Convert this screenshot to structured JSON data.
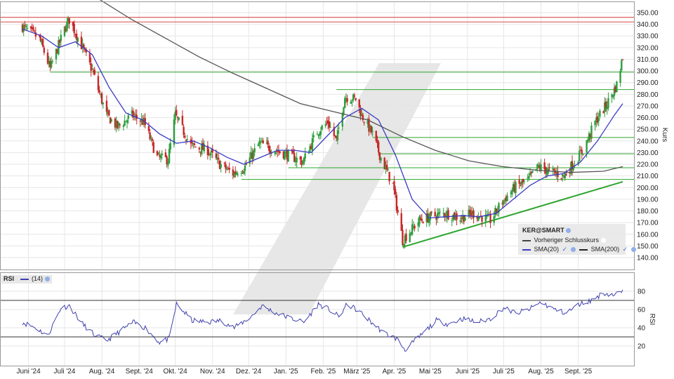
{
  "chart_data": [
    {
      "type": "candlestick",
      "symbol": "KER@SMART",
      "ylabel": "Kurs",
      "ylim": [
        140,
        350
      ],
      "y_ticks": [
        "350.00",
        "340.00",
        "330.00",
        "320.00",
        "310.00",
        "300.00",
        "290.00",
        "280.00",
        "270.00",
        "260.00",
        "250.00",
        "240.00",
        "230.00",
        "220.00",
        "210.00",
        "200.00",
        "190.00",
        "180.00",
        "170.00",
        "160.00",
        "150.00",
        "140.00"
      ],
      "x_ticks": [
        "Juni '24",
        "Juli '24",
        "Aug. '24",
        "Sept. '24",
        "Okt. '24",
        "Nov. '24",
        "Dez. '24",
        "Jan. '25",
        "Feb. '25",
        "März '25",
        "Apr. '25",
        "Mai '25",
        "Juni '25",
        "Juli '25",
        "Aug. '25",
        "Sept. '25"
      ],
      "price_path": [
        {
          "x": "2024-05-27",
          "y": 338
        },
        {
          "x": "2024-06-10",
          "y": 328
        },
        {
          "x": "2024-06-19",
          "y": 302
        },
        {
          "x": "2024-07-01",
          "y": 336
        },
        {
          "x": "2024-07-05",
          "y": 344
        },
        {
          "x": "2024-07-15",
          "y": 322
        },
        {
          "x": "2024-07-25",
          "y": 298
        },
        {
          "x": "2024-07-29",
          "y": 284
        },
        {
          "x": "2024-08-05",
          "y": 262
        },
        {
          "x": "2024-08-14",
          "y": 252
        },
        {
          "x": "2024-08-26",
          "y": 262
        },
        {
          "x": "2024-09-05",
          "y": 256
        },
        {
          "x": "2024-09-16",
          "y": 226
        },
        {
          "x": "2024-09-25",
          "y": 224
        },
        {
          "x": "2024-10-01",
          "y": 262
        },
        {
          "x": "2024-10-14",
          "y": 236
        },
        {
          "x": "2024-10-28",
          "y": 232
        },
        {
          "x": "2024-11-07",
          "y": 220
        },
        {
          "x": "2024-11-18",
          "y": 212
        },
        {
          "x": "2024-11-28",
          "y": 218
        },
        {
          "x": "2024-12-10",
          "y": 238
        },
        {
          "x": "2024-12-23",
          "y": 232
        },
        {
          "x": "2025-01-03",
          "y": 228
        },
        {
          "x": "2025-01-15",
          "y": 222
        },
        {
          "x": "2025-01-27",
          "y": 248
        },
        {
          "x": "2025-02-05",
          "y": 256
        },
        {
          "x": "2025-02-12",
          "y": 240
        },
        {
          "x": "2025-02-19",
          "y": 278
        },
        {
          "x": "2025-02-28",
          "y": 276
        },
        {
          "x": "2025-03-05",
          "y": 262
        },
        {
          "x": "2025-03-14",
          "y": 246
        },
        {
          "x": "2025-03-20",
          "y": 228
        },
        {
          "x": "2025-03-31",
          "y": 202
        },
        {
          "x": "2025-04-08",
          "y": 155
        },
        {
          "x": "2025-04-22",
          "y": 172
        },
        {
          "x": "2025-05-05",
          "y": 176
        },
        {
          "x": "2025-05-14",
          "y": 178
        },
        {
          "x": "2025-05-26",
          "y": 174
        },
        {
          "x": "2025-06-05",
          "y": 178
        },
        {
          "x": "2025-06-20",
          "y": 172
        },
        {
          "x": "2025-06-30",
          "y": 188
        },
        {
          "x": "2025-07-10",
          "y": 200
        },
        {
          "x": "2025-07-21",
          "y": 206
        },
        {
          "x": "2025-07-30",
          "y": 218
        },
        {
          "x": "2025-08-08",
          "y": 214
        },
        {
          "x": "2025-08-20",
          "y": 210
        },
        {
          "x": "2025-08-29",
          "y": 222
        },
        {
          "x": "2025-09-05",
          "y": 232
        },
        {
          "x": "2025-09-15",
          "y": 256
        },
        {
          "x": "2025-09-25",
          "y": 272
        },
        {
          "x": "2025-10-03",
          "y": 288
        },
        {
          "x": "2025-10-08",
          "y": 312
        }
      ],
      "sma20": [
        {
          "x": "2024-05-27",
          "y": 336
        },
        {
          "x": "2024-06-12",
          "y": 330
        },
        {
          "x": "2024-06-26",
          "y": 320
        },
        {
          "x": "2024-07-10",
          "y": 325
        },
        {
          "x": "2024-07-24",
          "y": 314
        },
        {
          "x": "2024-08-07",
          "y": 286
        },
        {
          "x": "2024-08-21",
          "y": 264
        },
        {
          "x": "2024-09-04",
          "y": 258
        },
        {
          "x": "2024-09-18",
          "y": 246
        },
        {
          "x": "2024-10-02",
          "y": 238
        },
        {
          "x": "2024-10-16",
          "y": 240
        },
        {
          "x": "2024-10-30",
          "y": 234
        },
        {
          "x": "2024-11-13",
          "y": 226
        },
        {
          "x": "2024-11-27",
          "y": 220
        },
        {
          "x": "2024-12-11",
          "y": 226
        },
        {
          "x": "2024-12-25",
          "y": 232
        },
        {
          "x": "2025-01-08",
          "y": 232
        },
        {
          "x": "2025-01-22",
          "y": 230
        },
        {
          "x": "2025-02-05",
          "y": 245
        },
        {
          "x": "2025-02-19",
          "y": 260
        },
        {
          "x": "2025-03-05",
          "y": 268
        },
        {
          "x": "2025-03-19",
          "y": 258
        },
        {
          "x": "2025-04-02",
          "y": 228
        },
        {
          "x": "2025-04-16",
          "y": 190
        },
        {
          "x": "2025-04-30",
          "y": 174
        },
        {
          "x": "2025-05-14",
          "y": 175
        },
        {
          "x": "2025-05-28",
          "y": 176
        },
        {
          "x": "2025-06-11",
          "y": 175
        },
        {
          "x": "2025-06-25",
          "y": 178
        },
        {
          "x": "2025-07-09",
          "y": 190
        },
        {
          "x": "2025-07-23",
          "y": 202
        },
        {
          "x": "2025-08-06",
          "y": 210
        },
        {
          "x": "2025-08-20",
          "y": 212
        },
        {
          "x": "2025-09-03",
          "y": 222
        },
        {
          "x": "2025-09-17",
          "y": 240
        },
        {
          "x": "2025-10-01",
          "y": 262
        },
        {
          "x": "2025-10-08",
          "y": 272
        }
      ],
      "sma200": [
        {
          "x": "2024-07-29",
          "y": 362
        },
        {
          "x": "2024-08-26",
          "y": 344
        },
        {
          "x": "2024-09-23",
          "y": 328
        },
        {
          "x": "2024-10-21",
          "y": 312
        },
        {
          "x": "2024-11-18",
          "y": 298
        },
        {
          "x": "2024-12-16",
          "y": 285
        },
        {
          "x": "2025-01-13",
          "y": 272
        },
        {
          "x": "2025-02-10",
          "y": 265
        },
        {
          "x": "2025-03-10",
          "y": 258
        },
        {
          "x": "2025-04-07",
          "y": 244
        },
        {
          "x": "2025-05-05",
          "y": 232
        },
        {
          "x": "2025-06-02",
          "y": 223
        },
        {
          "x": "2025-06-30",
          "y": 218
        },
        {
          "x": "2025-07-28",
          "y": 215
        },
        {
          "x": "2025-08-25",
          "y": 213
        },
        {
          "x": "2025-09-22",
          "y": 214
        },
        {
          "x": "2025-10-08",
          "y": 218
        }
      ],
      "previous_close": 218,
      "resistance_lines": [
        342,
        346
      ],
      "support_levels": [
        {
          "from": "2024-06-19",
          "to": "2025-10-08",
          "y": 299
        },
        {
          "from": "2025-02-12",
          "to": "2025-10-08",
          "y": 284
        },
        {
          "from": "2025-03-14",
          "to": "2025-10-08",
          "y": 243
        },
        {
          "from": "2025-03-20",
          "to": "2025-10-08",
          "y": 229
        },
        {
          "from": "2025-01-03",
          "to": "2025-10-08",
          "y": 217
        },
        {
          "from": "2024-11-25",
          "to": "2025-10-08",
          "y": 207
        }
      ],
      "trendline": [
        {
          "x": "2025-04-08",
          "y": 149
        },
        {
          "x": "2025-10-08",
          "y": 205
        }
      ],
      "legend": [
        "KER@SMART",
        "Vorheriger Schlusskurs",
        "SMA(20)",
        "SMA(200)"
      ],
      "grid": true,
      "colors": {
        "up": "#2e9e3e",
        "down": "#c62828",
        "sma20": "#3a3ac4",
        "sma200": "#555555",
        "support": "#2ea52e",
        "resistance": "#e06060",
        "trend": "#2ea52e"
      }
    },
    {
      "type": "line",
      "title": "RSI",
      "series": [
        {
          "name": "(14)",
          "color": "#4040b0"
        }
      ],
      "ylim": [
        10,
        90
      ],
      "y_ticks": [
        "80",
        "60",
        "40",
        "20"
      ],
      "reference_lines": [
        70,
        30
      ],
      "rsi_path": [
        {
          "x": "2024-05-27",
          "y": 46
        },
        {
          "x": "2024-06-07",
          "y": 40
        },
        {
          "x": "2024-06-17",
          "y": 31
        },
        {
          "x": "2024-06-28",
          "y": 62
        },
        {
          "x": "2024-07-05",
          "y": 64
        },
        {
          "x": "2024-07-16",
          "y": 44
        },
        {
          "x": "2024-07-26",
          "y": 32
        },
        {
          "x": "2024-08-05",
          "y": 26
        },
        {
          "x": "2024-08-16",
          "y": 36
        },
        {
          "x": "2024-08-27",
          "y": 46
        },
        {
          "x": "2024-09-06",
          "y": 40
        },
        {
          "x": "2024-09-18",
          "y": 24
        },
        {
          "x": "2024-09-26",
          "y": 28
        },
        {
          "x": "2024-10-02",
          "y": 66
        },
        {
          "x": "2024-10-15",
          "y": 48
        },
        {
          "x": "2024-10-28",
          "y": 46
        },
        {
          "x": "2024-11-08",
          "y": 48
        },
        {
          "x": "2024-11-19",
          "y": 40
        },
        {
          "x": "2024-12-03",
          "y": 52
        },
        {
          "x": "2024-12-12",
          "y": 64
        },
        {
          "x": "2024-12-24",
          "y": 56
        },
        {
          "x": "2025-01-06",
          "y": 50
        },
        {
          "x": "2025-01-16",
          "y": 46
        },
        {
          "x": "2025-01-28",
          "y": 66
        },
        {
          "x": "2025-02-06",
          "y": 60
        },
        {
          "x": "2025-02-14",
          "y": 52
        },
        {
          "x": "2025-02-21",
          "y": 66
        },
        {
          "x": "2025-03-03",
          "y": 58
        },
        {
          "x": "2025-03-13",
          "y": 46
        },
        {
          "x": "2025-03-24",
          "y": 34
        },
        {
          "x": "2025-04-03",
          "y": 28
        },
        {
          "x": "2025-04-10",
          "y": 16
        },
        {
          "x": "2025-04-22",
          "y": 30
        },
        {
          "x": "2025-05-06",
          "y": 48
        },
        {
          "x": "2025-05-16",
          "y": 44
        },
        {
          "x": "2025-05-28",
          "y": 50
        },
        {
          "x": "2025-06-09",
          "y": 46
        },
        {
          "x": "2025-06-20",
          "y": 50
        },
        {
          "x": "2025-07-01",
          "y": 62
        },
        {
          "x": "2025-07-11",
          "y": 56
        },
        {
          "x": "2025-07-22",
          "y": 60
        },
        {
          "x": "2025-08-01",
          "y": 68
        },
        {
          "x": "2025-08-12",
          "y": 60
        },
        {
          "x": "2025-08-22",
          "y": 56
        },
        {
          "x": "2025-09-02",
          "y": 66
        },
        {
          "x": "2025-09-12",
          "y": 70
        },
        {
          "x": "2025-09-22",
          "y": 78
        },
        {
          "x": "2025-10-01",
          "y": 76
        },
        {
          "x": "2025-10-08",
          "y": 80
        }
      ],
      "grid": true
    }
  ],
  "legend_box": {
    "symbol": "KER@SMART",
    "prev_close": "Vorheriger Schlusskurs",
    "sma20": "SMA(20)",
    "sma200": "SMA(200)"
  },
  "rsi_box": {
    "label": "RSI",
    "period": "(14)"
  }
}
